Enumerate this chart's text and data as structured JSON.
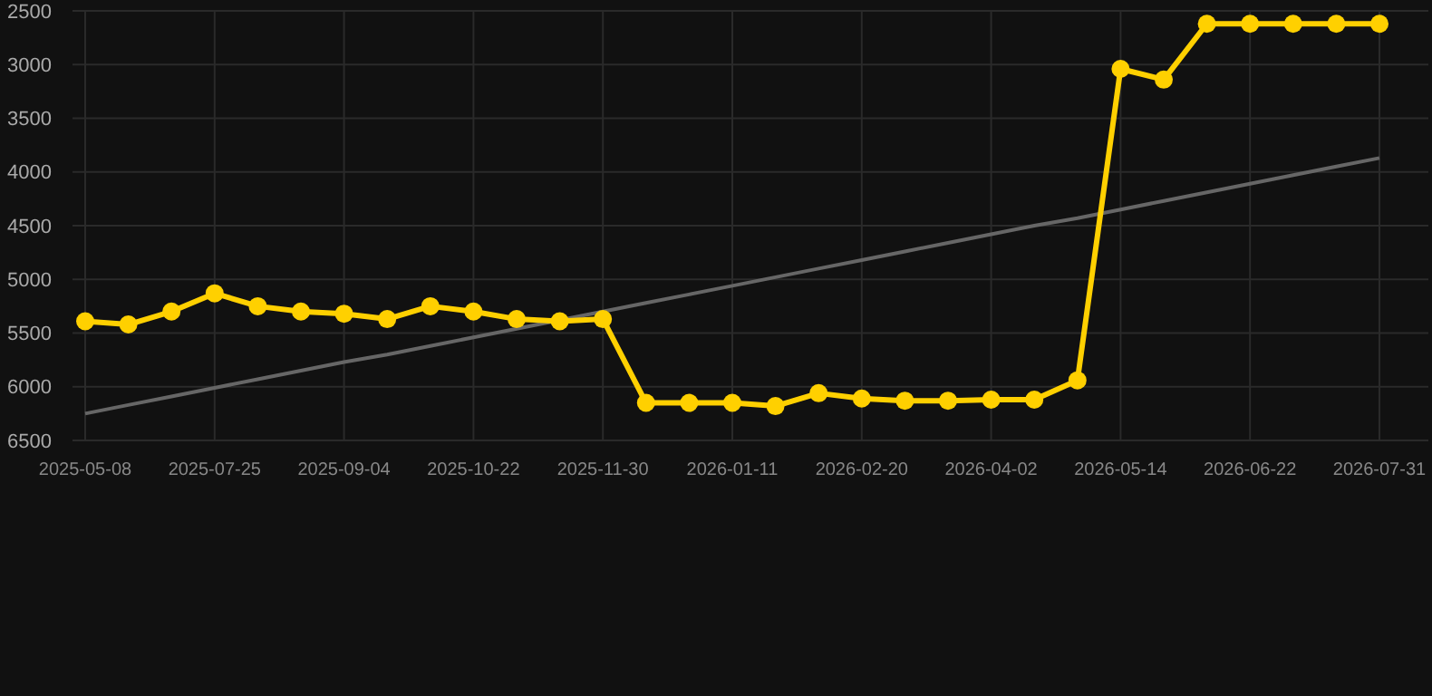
{
  "chart_data": {
    "type": "line",
    "categories": [
      "2025-05-08",
      null,
      null,
      "2025-07-25",
      null,
      null,
      "2025-09-04",
      null,
      null,
      "2025-10-22",
      null,
      null,
      "2025-11-30",
      null,
      null,
      "2026-01-11",
      null,
      null,
      "2026-02-20",
      null,
      null,
      "2026-04-02",
      null,
      null,
      "2026-05-14",
      null,
      null,
      "2026-06-22",
      null,
      null,
      "2026-07-31"
    ],
    "series": [
      {
        "color": "#666666",
        "marker": "none",
        "values": [
          6250,
          6170,
          6090,
          6010,
          5930,
          5850,
          5770,
          5700,
          5620,
          5540,
          5460,
          null,
          5300,
          5220,
          5140,
          5060,
          4980,
          4900,
          4820,
          4740,
          4660,
          4580,
          4500,
          4430,
          4350,
          4270,
          4190,
          4110,
          4030,
          3950,
          3870
        ]
      },
      {
        "color": "#ffd000",
        "marker": "circle",
        "values": [
          5390,
          5420,
          5300,
          5130,
          5250,
          5300,
          5320,
          5370,
          5250,
          5300,
          5370,
          5390,
          5370,
          6150,
          6150,
          6150,
          6180,
          6060,
          6110,
          6130,
          6130,
          6120,
          6120,
          5940,
          3040,
          3140,
          2620,
          2620,
          2620,
          2620,
          2620
        ]
      }
    ],
    "ylim": [
      6500,
      2500
    ],
    "yticks": [
      2500,
      3000,
      3500,
      4000,
      4500,
      5000,
      5500,
      6000,
      6500
    ],
    "grid": true
  }
}
